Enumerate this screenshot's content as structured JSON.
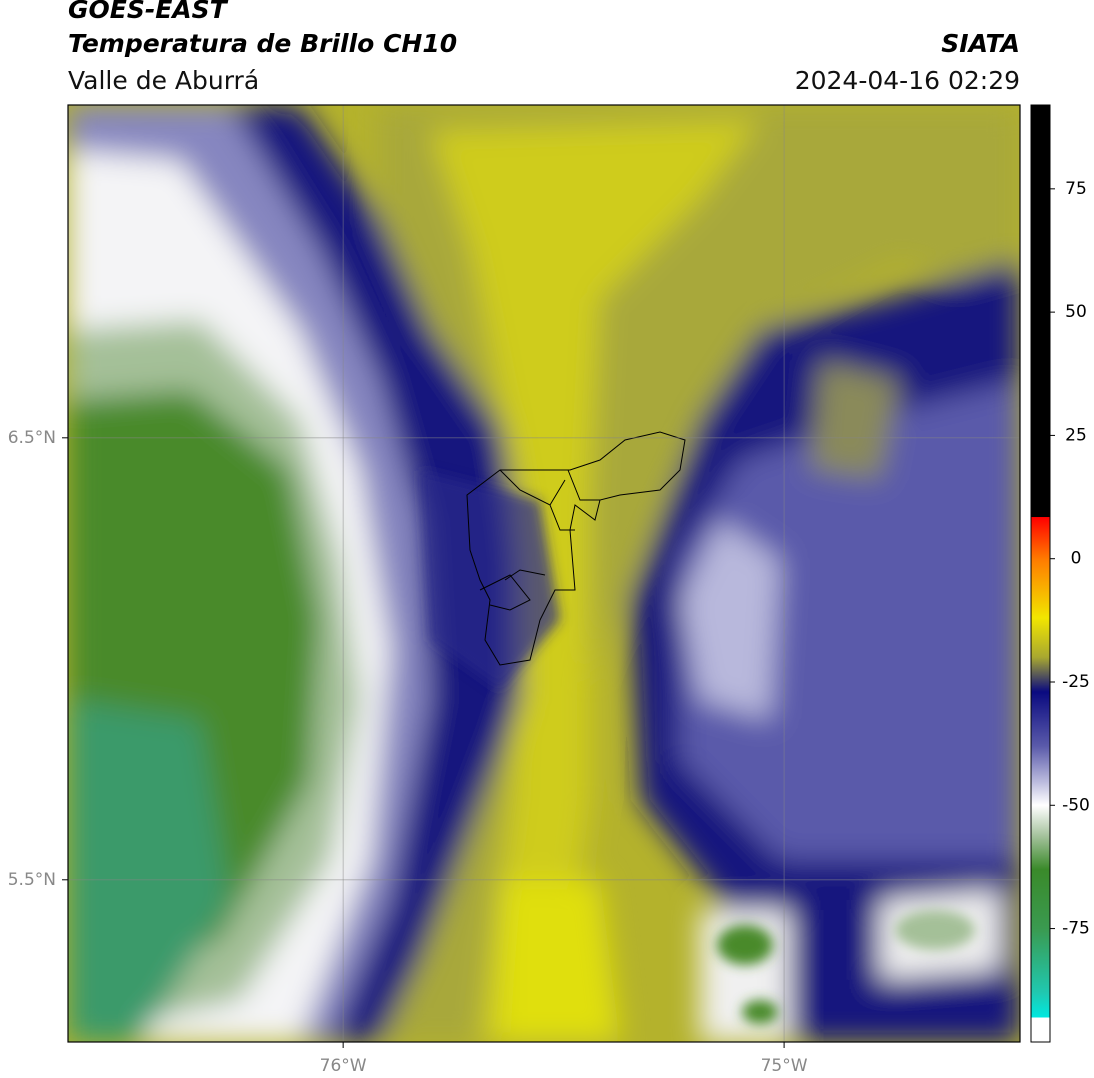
{
  "header": {
    "title": "GOES-EAST",
    "subtitle": "Temperatura de Brillo CH10",
    "region": "Valle de Aburrá",
    "source": "SIATA",
    "datetime": "2024-04-16 02:29"
  },
  "map": {
    "xlim": [
      -76.624,
      -74.465
    ],
    "ylim": [
      5.133,
      7.253
    ],
    "xticks": [
      {
        "value": -76,
        "label": "76°W"
      },
      {
        "value": -75,
        "label": "75°W"
      }
    ],
    "yticks": [
      {
        "value": 6.5,
        "label": "6.5°N"
      },
      {
        "value": 5.5,
        "label": "5.5°N"
      }
    ],
    "grid": true
  },
  "colorbar": {
    "lim": [
      -98,
      92
    ],
    "ticks": [
      75,
      50,
      25,
      0,
      -25,
      -50,
      -75
    ],
    "stops": [
      {
        "value": 92,
        "color": "#000000"
      },
      {
        "value": 8.5,
        "color": "#000000"
      },
      {
        "value": 8.4,
        "color": "#ff0000"
      },
      {
        "value": 0,
        "color": "#ff7a00"
      },
      {
        "value": -12,
        "color": "#f2e600"
      },
      {
        "value": -20,
        "color": "#a8a830"
      },
      {
        "value": -27,
        "color": "#0a0a80"
      },
      {
        "value": -38,
        "color": "#5a5aaa"
      },
      {
        "value": -45,
        "color": "#b8b8dc"
      },
      {
        "value": -50,
        "color": "#ffffff"
      },
      {
        "value": -56,
        "color": "#a8c4a0"
      },
      {
        "value": -63,
        "color": "#3a8a2a"
      },
      {
        "value": -75,
        "color": "#3a9a50"
      },
      {
        "value": -88,
        "color": "#20c8b0"
      },
      {
        "value": -93,
        "color": "#00e8e0"
      },
      {
        "value": -93.01,
        "color": "#ffffff"
      },
      {
        "value": -98,
        "color": "#ffffff"
      }
    ]
  }
}
